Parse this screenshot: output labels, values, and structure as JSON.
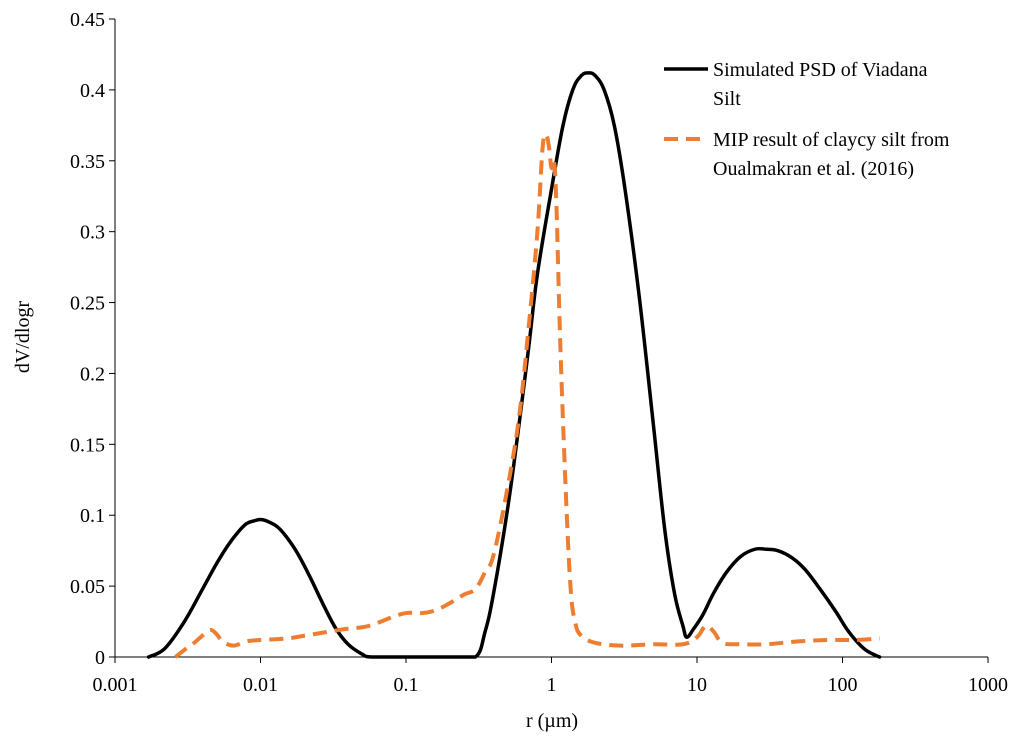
{
  "chart_data": {
    "type": "line",
    "title": "",
    "xlabel": "r (µm)",
    "ylabel": "dV/dlogr",
    "x_scale": "log",
    "xlim": [
      0.001,
      1000
    ],
    "ylim": [
      0,
      0.45
    ],
    "x_ticks": [
      0.001,
      0.01,
      0.1,
      1,
      10,
      100,
      1000
    ],
    "x_tick_labels": [
      "0.001",
      "0.01",
      "0.1",
      "1",
      "10",
      "100",
      "1000"
    ],
    "y_ticks": [
      0,
      0.05,
      0.1,
      0.15,
      0.2,
      0.25,
      0.3,
      0.35,
      0.4,
      0.45
    ],
    "y_tick_labels": [
      "0",
      "0.05",
      "0.1",
      "0.15",
      "0.2",
      "0.25",
      "0.3",
      "0.35",
      "0.4",
      "0.45"
    ],
    "grid": false,
    "legend_position": "top-right",
    "series": [
      {
        "name": "Simulated PSD of Viadana Silt",
        "legend_lines": [
          "Simulated PSD of Viadana",
          "Silt"
        ],
        "color": "#000000",
        "style": "solid",
        "points": [
          [
            0.0017,
            0
          ],
          [
            0.0022,
            0.006
          ],
          [
            0.003,
            0.025
          ],
          [
            0.004,
            0.048
          ],
          [
            0.005,
            0.066
          ],
          [
            0.006,
            0.079
          ],
          [
            0.007,
            0.088
          ],
          [
            0.008,
            0.094
          ],
          [
            0.009,
            0.096
          ],
          [
            0.01,
            0.097
          ],
          [
            0.011,
            0.096
          ],
          [
            0.013,
            0.092
          ],
          [
            0.015,
            0.085
          ],
          [
            0.018,
            0.073
          ],
          [
            0.022,
            0.056
          ],
          [
            0.027,
            0.037
          ],
          [
            0.033,
            0.02
          ],
          [
            0.04,
            0.009
          ],
          [
            0.05,
            0.002
          ],
          [
            0.058,
            0
          ],
          [
            0.1,
            0
          ],
          [
            0.2,
            0
          ],
          [
            0.3,
            0
          ],
          [
            0.35,
            0.018
          ],
          [
            0.4,
            0.045
          ],
          [
            0.5,
            0.105
          ],
          [
            0.6,
            0.165
          ],
          [
            0.7,
            0.22
          ],
          [
            0.8,
            0.27
          ],
          [
            1.0,
            0.33
          ],
          [
            1.2,
            0.375
          ],
          [
            1.4,
            0.4
          ],
          [
            1.6,
            0.41
          ],
          [
            1.8,
            0.412
          ],
          [
            2.0,
            0.41
          ],
          [
            2.3,
            0.4
          ],
          [
            2.7,
            0.375
          ],
          [
            3.2,
            0.33
          ],
          [
            4.0,
            0.255
          ],
          [
            5.0,
            0.165
          ],
          [
            6.0,
            0.09
          ],
          [
            7.0,
            0.045
          ],
          [
            8.0,
            0.022
          ],
          [
            8.5,
            0.014
          ],
          [
            9.5,
            0.02
          ],
          [
            11,
            0.03
          ],
          [
            13,
            0.045
          ],
          [
            16,
            0.06
          ],
          [
            20,
            0.071
          ],
          [
            25,
            0.076
          ],
          [
            30,
            0.076
          ],
          [
            36,
            0.075
          ],
          [
            45,
            0.07
          ],
          [
            55,
            0.062
          ],
          [
            70,
            0.048
          ],
          [
            90,
            0.032
          ],
          [
            110,
            0.018
          ],
          [
            140,
            0.006
          ],
          [
            170,
            0.001
          ],
          [
            180,
            0
          ]
        ]
      },
      {
        "name": "MIP result of clayey silt from Oualmakran et al. (2016)",
        "legend_lines": [
          "MIP result of claycy silt from",
          "Oualmakran et al. (2016)"
        ],
        "color": "#ED7D31",
        "style": "dashed",
        "points": [
          [
            0.0026,
            0
          ],
          [
            0.003,
            0.005
          ],
          [
            0.0035,
            0.01
          ],
          [
            0.0042,
            0.017
          ],
          [
            0.0046,
            0.019
          ],
          [
            0.005,
            0.016
          ],
          [
            0.0055,
            0.011
          ],
          [
            0.0065,
            0.008
          ],
          [
            0.008,
            0.011
          ],
          [
            0.01,
            0.012
          ],
          [
            0.015,
            0.013
          ],
          [
            0.02,
            0.015
          ],
          [
            0.03,
            0.018
          ],
          [
            0.04,
            0.02
          ],
          [
            0.05,
            0.021
          ],
          [
            0.06,
            0.023
          ],
          [
            0.08,
            0.028
          ],
          [
            0.1,
            0.031
          ],
          [
            0.13,
            0.031
          ],
          [
            0.16,
            0.033
          ],
          [
            0.2,
            0.038
          ],
          [
            0.25,
            0.044
          ],
          [
            0.3,
            0.048
          ],
          [
            0.35,
            0.06
          ],
          [
            0.4,
            0.072
          ],
          [
            0.5,
            0.12
          ],
          [
            0.6,
            0.17
          ],
          [
            0.7,
            0.235
          ],
          [
            0.8,
            0.3
          ],
          [
            0.87,
            0.36
          ],
          [
            0.92,
            0.368
          ],
          [
            0.96,
            0.36
          ],
          [
            1.0,
            0.345
          ],
          [
            1.04,
            0.35
          ],
          [
            1.08,
            0.32
          ],
          [
            1.15,
            0.22
          ],
          [
            1.25,
            0.12
          ],
          [
            1.35,
            0.05
          ],
          [
            1.45,
            0.025
          ],
          [
            1.6,
            0.015
          ],
          [
            2.0,
            0.01
          ],
          [
            3.0,
            0.008
          ],
          [
            5.0,
            0.009
          ],
          [
            8.0,
            0.009
          ],
          [
            10,
            0.014
          ],
          [
            11.5,
            0.022
          ],
          [
            13,
            0.018
          ],
          [
            15,
            0.01
          ],
          [
            20,
            0.009
          ],
          [
            30,
            0.009
          ],
          [
            50,
            0.011
          ],
          [
            80,
            0.012
          ],
          [
            120,
            0.012
          ],
          [
            180,
            0.013
          ]
        ]
      }
    ]
  }
}
